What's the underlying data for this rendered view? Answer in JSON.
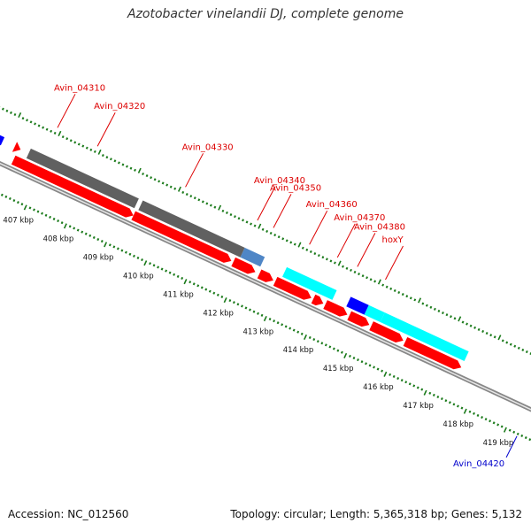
{
  "title": "Azotobacter vinelandii DJ, complete genome",
  "accession": "Accession: NC_012560",
  "summary": "Topology: circular; Length: 5,365,318 bp; Genes: 5,132",
  "colors": {
    "cds": "#ff0000",
    "cds_reverse": "#606060",
    "trna": "#00ffff",
    "rrna": "#0000ff",
    "highlight": "#4f86c6",
    "tick": "#1a7a1a",
    "label_red": "#dd0000",
    "label_blue": "#0000cc"
  },
  "scale_labels": [
    {
      "text": "407 kbp",
      "kbp": 407
    },
    {
      "text": "408 kbp",
      "kbp": 408
    },
    {
      "text": "409 kbp",
      "kbp": 409
    },
    {
      "text": "410 kbp",
      "kbp": 410
    },
    {
      "text": "411 kbp",
      "kbp": 411
    },
    {
      "text": "412 kbp",
      "kbp": 412
    },
    {
      "text": "413 kbp",
      "kbp": 413
    },
    {
      "text": "414 kbp",
      "kbp": 414
    },
    {
      "text": "415 kbp",
      "kbp": 415
    },
    {
      "text": "416 kbp",
      "kbp": 416
    },
    {
      "text": "417 kbp",
      "kbp": 417
    },
    {
      "text": "418 kbp",
      "kbp": 418
    },
    {
      "text": "419 kbp",
      "kbp": 419
    }
  ],
  "gene_labels": [
    {
      "text": "Avin_04310",
      "kbp": 406.9,
      "color": "label_red"
    },
    {
      "text": "Avin_04320",
      "kbp": 407.9,
      "color": "label_red"
    },
    {
      "text": "Avin_04330",
      "kbp": 410.1,
      "color": "label_red"
    },
    {
      "text": "Avin_04340",
      "kbp": 411.9,
      "color": "label_red"
    },
    {
      "text": "Avin_04350",
      "kbp": 412.3,
      "color": "label_red"
    },
    {
      "text": "Avin_04360",
      "kbp": 413.2,
      "color": "label_red"
    },
    {
      "text": "Avin_04370",
      "kbp": 413.9,
      "color": "label_red"
    },
    {
      "text": "Avin_04380",
      "kbp": 414.4,
      "color": "label_red"
    },
    {
      "text": "hoxY",
      "kbp": 415.1,
      "color": "label_red"
    },
    {
      "text": "Avin_04420",
      "kbp": 419.3,
      "color": "label_blue"
    }
  ],
  "features": [
    {
      "track": 1,
      "from": 403.0,
      "to": 405.9,
      "color": "rrna"
    },
    {
      "track": 2,
      "from": 406.2,
      "to": 406.35,
      "color": "cds"
    },
    {
      "track": 2,
      "from": 406.55,
      "to": 409.25,
      "color": "cds_reverse"
    },
    {
      "track": 2,
      "from": 409.35,
      "to": 411.9,
      "color": "cds_reverse"
    },
    {
      "track": 2,
      "from": 411.9,
      "to": 412.4,
      "color": "highlight"
    },
    {
      "track": 2,
      "from": 412.95,
      "to": 414.2,
      "color": "trna"
    },
    {
      "track": 2,
      "from": 414.55,
      "to": 415.0,
      "color": "rrna"
    },
    {
      "track": 2,
      "from": 415.0,
      "to": 415.4,
      "color": "trna"
    },
    {
      "track": 2,
      "from": 415.4,
      "to": 417.5,
      "color": "trna"
    },
    {
      "track": 3,
      "from": 406.3,
      "to": 409.3,
      "color": "cds"
    },
    {
      "track": 3,
      "from": 409.3,
      "to": 411.75,
      "color": "cds"
    },
    {
      "track": 3,
      "from": 411.8,
      "to": 412.35,
      "color": "cds"
    },
    {
      "track": 3,
      "from": 412.45,
      "to": 412.8,
      "color": "cds"
    },
    {
      "track": 3,
      "from": 412.85,
      "to": 413.75,
      "color": "cds"
    },
    {
      "track": 3,
      "from": 413.8,
      "to": 414.05,
      "color": "cds"
    },
    {
      "track": 3,
      "from": 414.1,
      "to": 414.65,
      "color": "cds"
    },
    {
      "track": 3,
      "from": 414.7,
      "to": 415.2,
      "color": "cds"
    },
    {
      "track": 3,
      "from": 415.25,
      "to": 416.05,
      "color": "cds"
    },
    {
      "track": 3,
      "from": 416.1,
      "to": 417.5,
      "color": "cds"
    }
  ]
}
